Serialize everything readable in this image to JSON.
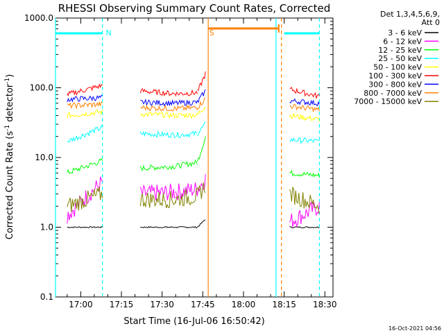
{
  "chart_data": {
    "type": "line",
    "title": "RHESSI Observing Summary Count Rates, Corrected",
    "xlabel": "Start Time (16-Jul-06 16:50:42)",
    "ylabel_parts": [
      "Corrected Count Rate (s",
      "-1",
      " detector",
      "-1",
      ")"
    ],
    "y_scale": "log",
    "ylim": [
      0.1,
      1000.0
    ],
    "y_ticks": [
      {
        "value": 0.1,
        "label": "0.1"
      },
      {
        "value": 1.0,
        "label": "1.0"
      },
      {
        "value": 10.0,
        "label": "10.0"
      },
      {
        "value": 100.0,
        "label": "100.0"
      },
      {
        "value": 1000.0,
        "label": "1000.0"
      }
    ],
    "xlim": [
      "16:50:42",
      "18:33:00"
    ],
    "x_ticks": [
      {
        "time": "17:00",
        "label": "17:00"
      },
      {
        "time": "17:15",
        "label": "17:15"
      },
      {
        "time": "17:30",
        "label": "17:30"
      },
      {
        "time": "17:45",
        "label": "17:45"
      },
      {
        "time": "18:00",
        "label": "18:00"
      },
      {
        "time": "18:15",
        "label": "18:15"
      },
      {
        "time": "18:30",
        "label": "18:30"
      }
    ],
    "legend_position": "right",
    "legend_header": [
      "Det 1,3,4,5,6,9,",
      "Att 0"
    ],
    "series": [
      {
        "name": "3 - 6 keV",
        "color": "#000000",
        "values": [
          1.0,
          1.0,
          null,
          1.0,
          1.0,
          1.0,
          1.3
        ]
      },
      {
        "name": "6 - 12 keV",
        "color": "#ff00ff",
        "values": [
          1.5,
          4.5,
          null,
          3.0,
          3.2,
          3.5,
          5.0
        ]
      },
      {
        "name": "12 - 25 keV",
        "color": "#00ff00",
        "values": [
          6.0,
          9.0,
          null,
          7.0,
          7.5,
          8.5,
          20.0
        ]
      },
      {
        "name": "25 - 50 keV",
        "color": "#00ffff",
        "values": [
          17.0,
          27.0,
          null,
          22.0,
          21.0,
          22.0,
          30.0
        ]
      },
      {
        "name": "50 - 100 keV",
        "color": "#ffff00",
        "values": [
          40.0,
          45.0,
          null,
          42.0,
          40.0,
          41.0,
          55.0
        ]
      },
      {
        "name": "100 - 300 keV",
        "color": "#ff0000",
        "values": [
          80.0,
          108.0,
          null,
          90.0,
          82.0,
          85.0,
          160.0
        ]
      },
      {
        "name": "300 - 800 keV",
        "color": "#0000ff",
        "values": [
          68.0,
          72.0,
          null,
          62.0,
          60.0,
          62.0,
          90.0
        ]
      },
      {
        "name": "800 - 7000 keV",
        "color": "#ff8000",
        "values": [
          55.0,
          58.0,
          null,
          52.0,
          50.0,
          52.0,
          70.0
        ]
      },
      {
        "name": "7000 - 15000 keV",
        "color": "#808000",
        "values": [
          2.0,
          3.0,
          null,
          2.5,
          2.5,
          2.8,
          4.0
        ]
      }
    ],
    "series_times": [
      "16:55",
      "17:08",
      "17:14",
      "17:22",
      "17:35",
      "17:43",
      "17:46"
    ],
    "series_after_gap": {
      "times": [
        "18:17",
        "18:28"
      ],
      "values": {
        "3 - 6 keV": [
          1.0,
          1.0
        ],
        "6 - 12 keV": [
          1.2,
          2.0
        ],
        "12 - 25 keV": [
          6.0,
          5.5
        ],
        "25 - 50 keV": [
          18.0,
          17.0
        ],
        "50 - 100 keV": [
          40.0,
          35.0
        ],
        "100 - 300 keV": [
          95.0,
          75.0
        ],
        "300 - 800 keV": [
          65.0,
          60.0
        ],
        "800 - 7000 keV": [
          55.0,
          48.0
        ],
        "7000 - 15000 keV": [
          3.0,
          2.0
        ]
      }
    },
    "annotations": [
      {
        "text": "N",
        "time": "17:08",
        "color": "#00ffff"
      },
      {
        "text": "S",
        "time": "17:46",
        "color": "#ff8000"
      }
    ],
    "markers": {
      "night_bars": [
        [
          "16:50:42",
          "17:08"
        ],
        [
          "18:15",
          "18:28"
        ]
      ],
      "saa_bar": [
        "17:47",
        "18:13"
      ],
      "vlines_solid": [
        {
          "time": "16:50:42",
          "color": "#00ffff"
        },
        {
          "time": "17:47",
          "color": "#ff8000"
        },
        {
          "time": "18:12",
          "color": "#00ffff"
        }
      ],
      "vlines_dashed": [
        {
          "time": "17:08",
          "color": "#00ffff"
        },
        {
          "time": "18:14",
          "color": "#ff8000"
        },
        {
          "time": "18:28",
          "color": "#00ffff"
        }
      ]
    },
    "footer_date": "16-Oct-2021 04:56"
  }
}
